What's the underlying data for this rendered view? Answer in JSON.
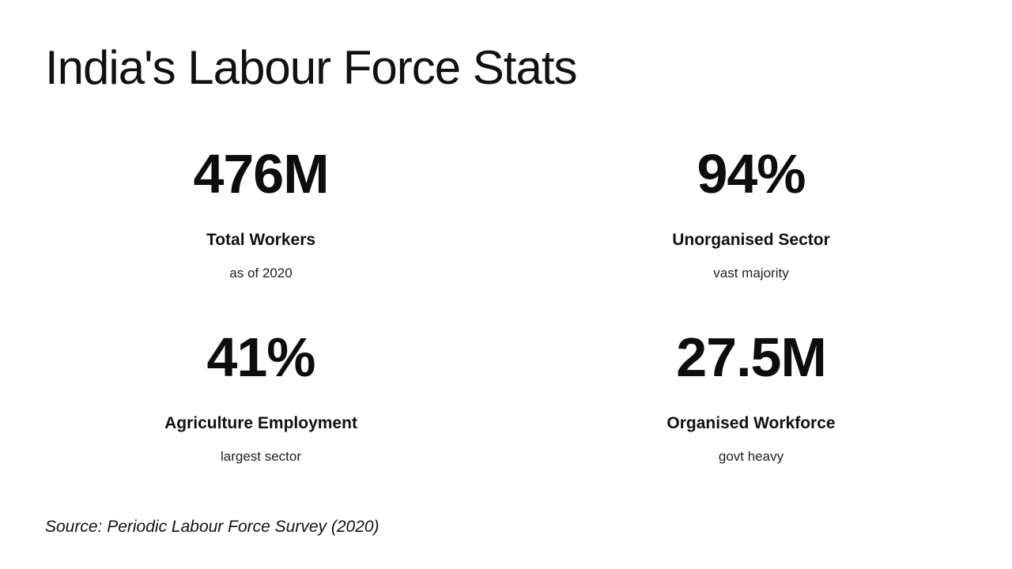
{
  "title": "India's Labour Force Stats",
  "stats": [
    {
      "value": "476M",
      "label": "Total Workers",
      "note": "as of 2020"
    },
    {
      "value": "94%",
      "label": "Unorganised Sector",
      "note": "vast majority"
    },
    {
      "value": "41%",
      "label": "Agriculture Employment",
      "note": "largest sector"
    },
    {
      "value": "27.5M",
      "label": "Organised Workforce",
      "note": "govt heavy"
    }
  ],
  "source": "Source: Periodic Labour Force Survey (2020)",
  "colors": {
    "background": "#ffffff",
    "text": "#111111"
  },
  "chart_data": {
    "type": "table",
    "title": "India's Labour Force Stats",
    "categories": [
      "Total Workers",
      "Unorganised Sector",
      "Agriculture Employment",
      "Organised Workforce"
    ],
    "values": [
      "476M",
      "94%",
      "41%",
      "27.5M"
    ],
    "numeric_values": [
      476000000,
      94,
      41,
      27500000
    ],
    "units": [
      "workers",
      "percent",
      "percent",
      "workers"
    ],
    "notes": [
      "as of 2020",
      "vast majority",
      "largest sector",
      "govt heavy"
    ],
    "source": "Source: Periodic Labour Force Survey (2020)",
    "layout": "2x2 big-number stat grid, white background, black text"
  }
}
